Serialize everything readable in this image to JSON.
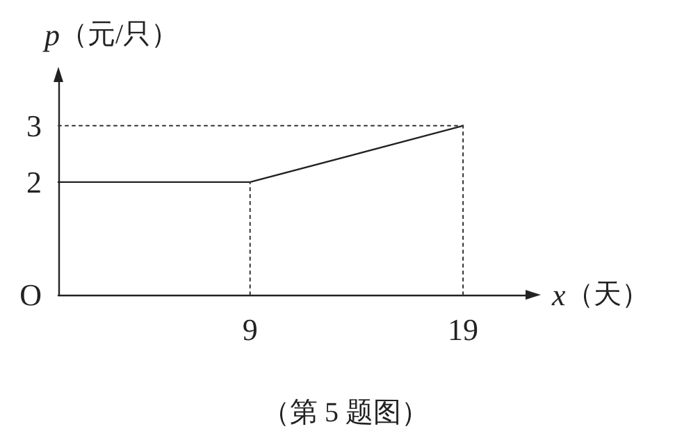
{
  "chart_data": {
    "type": "line",
    "xlabel": "x（天）",
    "ylabel": "p（元/只）",
    "annotations": [
      "（第 5 题图）"
    ],
    "x": [
      0,
      9,
      19
    ],
    "series": [
      {
        "color": "#222222",
        "values": [
          2,
          2,
          3
        ]
      },
      {
        "color": "#333333",
        "x": [
          9,
          9
        ],
        "values": [
          0,
          2
        ],
        "line_style": "dotted"
      },
      {
        "color": "#333333",
        "x": [
          19,
          19
        ],
        "values": [
          0,
          3
        ],
        "line_style": "dotted"
      },
      {
        "color": "#333333",
        "x": [
          0,
          19
        ],
        "values": [
          3,
          3
        ],
        "line_style": "dotted"
      }
    ],
    "xlim": [
      0,
      22
    ],
    "ylim": [
      0,
      3.8
    ],
    "xticks": [
      9,
      19
    ],
    "yticks": [
      {
        "value": 0,
        "label": "O"
      },
      2,
      3
    ],
    "marker": "none",
    "line_style": "solid"
  }
}
